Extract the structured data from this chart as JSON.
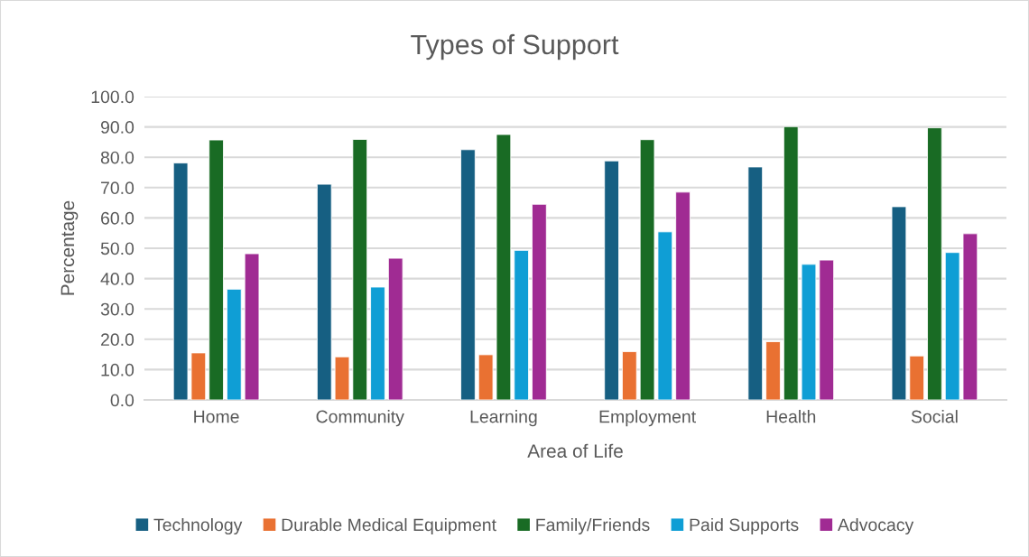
{
  "chart_data": {
    "type": "bar",
    "title": "Types of Support",
    "xlabel": "Area of Life",
    "ylabel": "Percentage",
    "categories": [
      "Home",
      "Community",
      "Learning",
      "Employment",
      "Health",
      "Social"
    ],
    "series": [
      {
        "name": "Technology",
        "color": "#165f82",
        "values": [
          78.1,
          71.1,
          82.5,
          78.8,
          76.8,
          63.7
        ]
      },
      {
        "name": "Durable Medical Equipment",
        "color": "#e97132",
        "values": [
          15.5,
          14.2,
          14.9,
          15.9,
          19.2,
          14.5
        ]
      },
      {
        "name": "Family/Friends",
        "color": "#196b24",
        "values": [
          85.7,
          85.9,
          87.5,
          85.8,
          90.1,
          89.7
        ]
      },
      {
        "name": "Paid Supports",
        "color": "#0f9ed5",
        "values": [
          36.5,
          37.2,
          49.3,
          55.4,
          44.7,
          48.6
        ]
      },
      {
        "name": "Advocacy",
        "color": "#a02b93",
        "values": [
          48.2,
          46.7,
          64.5,
          68.5,
          46.1,
          54.8
        ]
      }
    ],
    "ylim": [
      0,
      100
    ],
    "yticks": [
      {
        "value": 0,
        "label": "0.0"
      },
      {
        "value": 10,
        "label": "10.0"
      },
      {
        "value": 20,
        "label": "20.0"
      },
      {
        "value": 30,
        "label": "30.0"
      },
      {
        "value": 40,
        "label": "40.0"
      },
      {
        "value": 50,
        "label": "50.0"
      },
      {
        "value": 60,
        "label": "60.0"
      },
      {
        "value": 70,
        "label": "70.0"
      },
      {
        "value": 80,
        "label": "80.0"
      },
      {
        "value": 90,
        "label": "90.0"
      },
      {
        "value": 100,
        "label": "100.0"
      }
    ],
    "grid": "y",
    "legend": "bottom"
  }
}
